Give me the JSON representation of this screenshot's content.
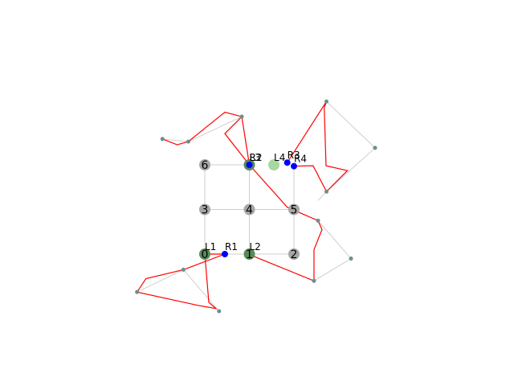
{
  "colors": {
    "background": "#ffffff",
    "grid_edge": "#cfcfcf",
    "path": "#ff0000",
    "node_gray": "#a6a6a6",
    "node_green": "#5a8a5a",
    "node_light_green": "#a8d8a0",
    "marker_blue": "#0000ff",
    "waypoint": "#6b8f8f"
  },
  "nodes": [
    {
      "label": "0",
      "x": 0,
      "y": 0,
      "style": "green"
    },
    {
      "label": "1",
      "x": 1,
      "y": 0,
      "style": "green"
    },
    {
      "label": "2",
      "x": 2,
      "y": 0,
      "style": "gray"
    },
    {
      "label": "3",
      "x": 0,
      "y": 1,
      "style": "gray"
    },
    {
      "label": "4",
      "x": 1,
      "y": 1,
      "style": "gray"
    },
    {
      "label": "5",
      "x": 2,
      "y": 1,
      "style": "gray"
    },
    {
      "label": "6",
      "x": 0,
      "y": 2,
      "style": "gray"
    },
    {
      "label": "",
      "x": 1,
      "y": 2,
      "style": "green"
    },
    {
      "label": "",
      "x": 1.55,
      "y": 2,
      "style": "light_green"
    }
  ],
  "grid_edges": [
    [
      [
        0,
        0
      ],
      [
        1,
        0
      ]
    ],
    [
      [
        1,
        0
      ],
      [
        2,
        0
      ]
    ],
    [
      [
        0,
        1
      ],
      [
        1,
        1
      ]
    ],
    [
      [
        1,
        1
      ],
      [
        2,
        1
      ]
    ],
    [
      [
        0,
        2
      ],
      [
        1,
        2
      ]
    ],
    [
      [
        0,
        0
      ],
      [
        0,
        1
      ]
    ],
    [
      [
        0,
        1
      ],
      [
        0,
        2
      ]
    ],
    [
      [
        1,
        0
      ],
      [
        1,
        1
      ]
    ],
    [
      [
        1,
        1
      ],
      [
        1,
        2
      ]
    ],
    [
      [
        2,
        0
      ],
      [
        2,
        1
      ]
    ],
    [
      [
        2,
        1
      ],
      [
        2,
        1.98
      ]
    ]
  ],
  "gray_edges": [
    [
      [
        -0.48,
        -0.35
      ],
      [
        -1.52,
        -0.85
      ]
    ],
    [
      [
        -0.48,
        -0.35
      ],
      [
        0.32,
        -1.28
      ]
    ],
    [
      [
        -0.95,
        2.58
      ],
      [
        -0.37,
        2.52
      ]
    ],
    [
      [
        0.83,
        3.08
      ],
      [
        -0.37,
        2.52
      ]
    ],
    [
      [
        2.73,
        3.42
      ],
      [
        3.82,
        2.38
      ]
    ],
    [
      [
        3.82,
        2.38
      ],
      [
        2.73,
        1.4
      ]
    ],
    [
      [
        2.73,
        1.4
      ],
      [
        2.54,
        1.2
      ]
    ],
    [
      [
        2.54,
        0.75
      ],
      [
        3.28,
        -0.1
      ]
    ],
    [
      [
        3.28,
        -0.1
      ],
      [
        2.45,
        -0.6
      ]
    ]
  ],
  "red_paths": [
    [
      [
        -0.48,
        -0.35
      ],
      [
        -1.32,
        -0.55
      ],
      [
        -1.52,
        -0.85
      ],
      [
        -0.15,
        -1.15
      ],
      [
        0.25,
        -1.22
      ],
      [
        0.09,
        -1.08
      ],
      [
        0,
        0
      ]
    ],
    [
      [
        0,
        0
      ],
      [
        0.45,
        0
      ],
      [
        -0.48,
        -0.35
      ]
    ],
    [
      [
        -0.95,
        2.58
      ],
      [
        -0.62,
        2.45
      ],
      [
        -0.37,
        2.52
      ],
      [
        0.45,
        3.18
      ],
      [
        0.83,
        3.08
      ],
      [
        1,
        2
      ]
    ],
    [
      [
        1,
        2
      ],
      [
        1.85,
        1.05
      ],
      [
        2.54,
        0.75
      ],
      [
        2.63,
        0.55
      ],
      [
        2.45,
        0.1
      ],
      [
        2.45,
        -0.6
      ],
      [
        1.1,
        -0.05
      ],
      [
        1,
        0
      ]
    ],
    [
      [
        1,
        2
      ],
      [
        0.45,
        2.7
      ],
      [
        0.83,
        3.08
      ]
    ],
    [
      [
        1.85,
        2.05
      ],
      [
        2.73,
        3.42
      ],
      [
        2.68,
        3.28
      ],
      [
        2.72,
        1.98
      ],
      [
        3.2,
        1.87
      ],
      [
        2.73,
        1.4
      ],
      [
        2.43,
        1.98
      ],
      [
        1.98,
        1.97
      ]
    ]
  ],
  "waypoints": [
    [
      -0.48,
      -0.35
    ],
    [
      -1.52,
      -0.85
    ],
    [
      0.32,
      -1.28
    ],
    [
      -0.95,
      2.58
    ],
    [
      -0.37,
      2.52
    ],
    [
      0.83,
      3.08
    ],
    [
      2.73,
      3.42
    ],
    [
      3.82,
      2.38
    ],
    [
      2.73,
      1.4
    ],
    [
      2.54,
      0.75
    ],
    [
      3.28,
      -0.1
    ],
    [
      2.45,
      -0.6
    ]
  ],
  "markers": [
    {
      "label": "R1",
      "x": 0.45,
      "y": 0
    },
    {
      "label": "R2",
      "x": 1,
      "y": 2
    },
    {
      "label": "R3",
      "x": 1.85,
      "y": 2.05
    },
    {
      "label": "R4",
      "x": 2,
      "y": 1.97
    }
  ],
  "text_labels": [
    {
      "text": "L1",
      "x": 0.0,
      "y": 0.0,
      "dx": 0,
      "dy": -5
    },
    {
      "text": "R1",
      "x": 0.45,
      "y": 0,
      "dx": 0,
      "dy": -5
    },
    {
      "text": "L2",
      "x": 1,
      "y": 0,
      "dx": 0,
      "dy": -5
    },
    {
      "text": "R2",
      "x": 1,
      "y": 2,
      "dx": 0,
      "dy": -5
    },
    {
      "text": "L3",
      "x": 1,
      "y": 2,
      "dx": 0,
      "dy": -5
    },
    {
      "text": "L4",
      "x": 1.55,
      "y": 2,
      "dx": 0,
      "dy": -5
    },
    {
      "text": "R3",
      "x": 1.85,
      "y": 2.05,
      "dx": 0,
      "dy": -5
    },
    {
      "text": "R4",
      "x": 2,
      "y": 1.97,
      "dx": 0,
      "dy": -5
    }
  ]
}
